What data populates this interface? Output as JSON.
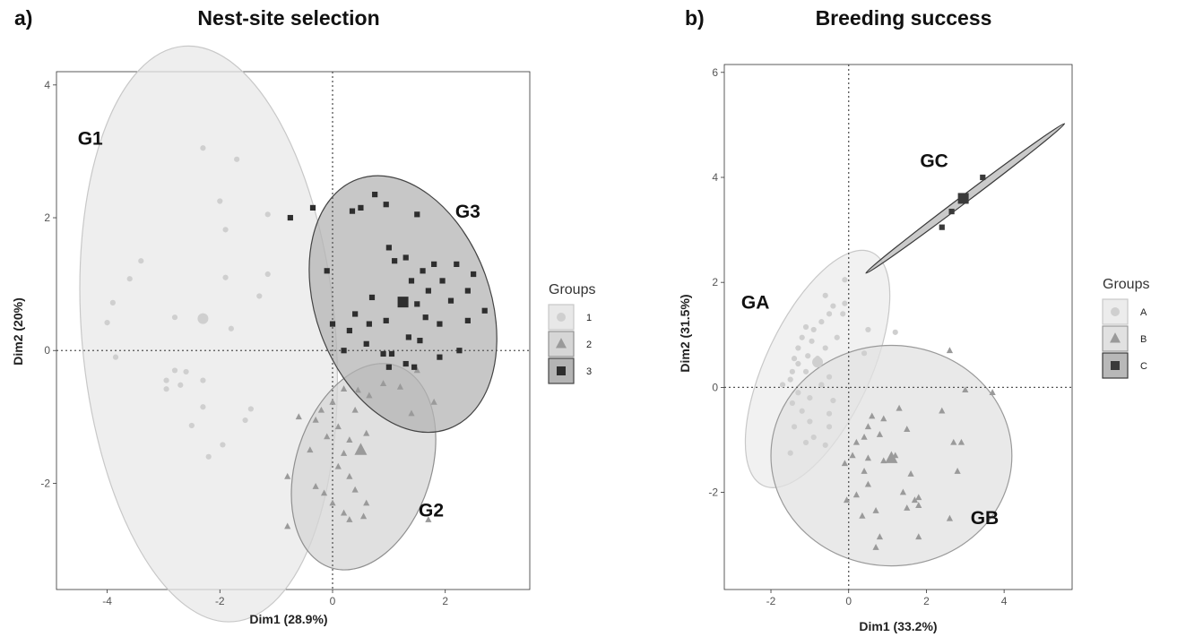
{
  "chart_data": [
    {
      "type": "scatter",
      "panel_letter": "a)",
      "title": "Nest-site selection",
      "xlabel": "Dim1 (28.9%)",
      "ylabel": "Dim2 (20%)",
      "xlim": [
        -4.9,
        3.5
      ],
      "ylim": [
        -3.6,
        4.2
      ],
      "xticks": [
        -4,
        -2,
        0,
        2
      ],
      "yticks": [
        -2,
        0,
        2,
        4
      ],
      "grid": false,
      "reference_lines": {
        "x": 0,
        "y": 0
      },
      "legend": {
        "title": "Groups",
        "position": "right",
        "entries": [
          "1",
          "2",
          "3"
        ]
      },
      "series": [
        {
          "legend_label": "1",
          "plot_label": "G1",
          "marker": "circle",
          "color": "#cfcfcf",
          "ellipse": {
            "cx": -2.2,
            "cy": 0.25,
            "rx": 2.25,
            "ry": 4.35,
            "angle": -5,
            "fill": "#e8e8e8",
            "stroke": "#c8c8c8"
          },
          "centroid": [
            -2.3,
            0.48
          ],
          "points": [
            [
              -2.3,
              3.05
            ],
            [
              -1.7,
              2.88
            ],
            [
              -2.0,
              2.25
            ],
            [
              -1.15,
              2.05
            ],
            [
              -1.9,
              1.82
            ],
            [
              -3.4,
              1.35
            ],
            [
              -3.6,
              1.08
            ],
            [
              -1.9,
              1.1
            ],
            [
              -1.15,
              1.15
            ],
            [
              -3.9,
              0.72
            ],
            [
              -1.3,
              0.82
            ],
            [
              -4.0,
              0.42
            ],
            [
              -2.8,
              0.5
            ],
            [
              -1.8,
              0.33
            ],
            [
              -3.85,
              -0.1
            ],
            [
              -2.8,
              -0.3
            ],
            [
              -2.6,
              -0.32
            ],
            [
              -2.3,
              -0.45
            ],
            [
              -2.95,
              -0.45
            ],
            [
              -2.95,
              -0.58
            ],
            [
              -2.7,
              -0.52
            ],
            [
              -2.3,
              -0.85
            ],
            [
              -1.45,
              -0.88
            ],
            [
              -1.55,
              -1.05
            ],
            [
              -2.5,
              -1.13
            ],
            [
              -1.95,
              -1.42
            ],
            [
              -2.2,
              -1.6
            ]
          ]
        },
        {
          "legend_label": "2",
          "plot_label": "G2",
          "marker": "triangle",
          "color": "#9a9a9a",
          "ellipse": {
            "cx": 0.55,
            "cy": -1.75,
            "rx": 1.2,
            "ry": 1.6,
            "angle": 18,
            "fill": "#d6d6d6",
            "stroke": "#8f8f8f"
          },
          "centroid": [
            0.5,
            -1.5
          ],
          "points": [
            [
              1.5,
              -0.3
            ],
            [
              0.9,
              -0.5
            ],
            [
              1.2,
              -0.55
            ],
            [
              0.2,
              -0.58
            ],
            [
              0.45,
              -0.6
            ],
            [
              0.65,
              -0.68
            ],
            [
              1.8,
              -0.78
            ],
            [
              0.0,
              -0.78
            ],
            [
              -0.2,
              -0.9
            ],
            [
              0.4,
              -0.9
            ],
            [
              1.4,
              -0.95
            ],
            [
              -0.6,
              -1.0
            ],
            [
              -0.3,
              -1.05
            ],
            [
              0.1,
              -1.15
            ],
            [
              0.6,
              -1.25
            ],
            [
              -0.1,
              -1.3
            ],
            [
              0.3,
              -1.35
            ],
            [
              -0.4,
              -1.5
            ],
            [
              0.2,
              -1.55
            ],
            [
              0.1,
              -1.75
            ],
            [
              -0.8,
              -1.9
            ],
            [
              0.3,
              -1.9
            ],
            [
              -0.3,
              -2.05
            ],
            [
              0.4,
              -2.1
            ],
            [
              -0.15,
              -2.15
            ],
            [
              0.0,
              -2.3
            ],
            [
              0.2,
              -2.45
            ],
            [
              0.55,
              -2.5
            ],
            [
              0.3,
              -2.55
            ],
            [
              -0.8,
              -2.65
            ],
            [
              1.7,
              -2.55
            ],
            [
              0.6,
              -2.3
            ]
          ]
        },
        {
          "legend_label": "3",
          "plot_label": "G3",
          "marker": "square",
          "color": "#2e2e2e",
          "ellipse": {
            "cx": 1.25,
            "cy": 0.7,
            "rx": 1.55,
            "ry": 2.0,
            "angle": -20,
            "fill": "#b4b4b4",
            "stroke": "#444444"
          },
          "centroid": [
            1.25,
            0.73
          ],
          "points": [
            [
              -0.75,
              2.0
            ],
            [
              -0.35,
              2.15
            ],
            [
              0.35,
              2.1
            ],
            [
              0.95,
              2.2
            ],
            [
              0.75,
              2.35
            ],
            [
              1.5,
              2.05
            ],
            [
              1.0,
              1.55
            ],
            [
              1.3,
              1.4
            ],
            [
              1.8,
              1.3
            ],
            [
              1.1,
              1.35
            ],
            [
              2.2,
              1.3
            ],
            [
              -0.1,
              1.2
            ],
            [
              1.6,
              1.2
            ],
            [
              2.5,
              1.15
            ],
            [
              1.4,
              1.05
            ],
            [
              1.95,
              1.05
            ],
            [
              2.4,
              0.9
            ],
            [
              1.7,
              0.9
            ],
            [
              2.1,
              0.75
            ],
            [
              0.7,
              0.8
            ],
            [
              1.5,
              0.7
            ],
            [
              2.7,
              0.6
            ],
            [
              0.4,
              0.55
            ],
            [
              1.65,
              0.5
            ],
            [
              2.4,
              0.45
            ],
            [
              0.0,
              0.4
            ],
            [
              0.65,
              0.4
            ],
            [
              0.95,
              0.45
            ],
            [
              1.9,
              0.4
            ],
            [
              0.3,
              0.3
            ],
            [
              1.35,
              0.2
            ],
            [
              1.55,
              0.15
            ],
            [
              0.6,
              0.1
            ],
            [
              2.25,
              0.0
            ],
            [
              0.2,
              0.0
            ],
            [
              0.9,
              -0.05
            ],
            [
              1.9,
              -0.1
            ],
            [
              1.0,
              -0.25
            ],
            [
              1.3,
              -0.2
            ],
            [
              1.45,
              -0.25
            ],
            [
              0.5,
              2.15
            ],
            [
              1.05,
              -0.05
            ]
          ]
        }
      ]
    },
    {
      "type": "scatter",
      "panel_letter": "b)",
      "title": "Breeding success",
      "xlabel": "Dim1 (33.2%)",
      "ylabel": "Dim2 (31.5%)",
      "xlim": [
        -3.2,
        5.75
      ],
      "ylim": [
        -3.85,
        6.15
      ],
      "xticks": [
        -2,
        0,
        2,
        4
      ],
      "yticks": [
        -2,
        0,
        2,
        4,
        6
      ],
      "grid": false,
      "reference_lines": {
        "x": 0,
        "y": 0
      },
      "legend": {
        "title": "Groups",
        "position": "right",
        "entries": [
          "A",
          "B",
          "C"
        ]
      },
      "series": [
        {
          "legend_label": "A",
          "plot_label": "GA",
          "marker": "circle",
          "color": "#cfcfcf",
          "ellipse": {
            "cx": -0.8,
            "cy": 0.35,
            "rx": 1.35,
            "ry": 2.45,
            "angle": 25,
            "fill": "#ececec",
            "stroke": "#c8c8c8"
          },
          "centroid": [
            -0.8,
            0.48
          ],
          "points": [
            [
              -0.1,
              2.05
            ],
            [
              -0.6,
              1.75
            ],
            [
              -0.1,
              1.6
            ],
            [
              -0.4,
              1.55
            ],
            [
              -0.15,
              1.4
            ],
            [
              -0.5,
              1.4
            ],
            [
              -0.9,
              1.1
            ],
            [
              -1.1,
              1.15
            ],
            [
              -0.7,
              1.25
            ],
            [
              -1.2,
              0.95
            ],
            [
              -0.95,
              0.88
            ],
            [
              -1.3,
              0.75
            ],
            [
              -0.6,
              0.75
            ],
            [
              -1.05,
              0.6
            ],
            [
              -1.4,
              0.55
            ],
            [
              -0.8,
              0.55
            ],
            [
              -1.3,
              0.45
            ],
            [
              -1.45,
              0.3
            ],
            [
              -1.1,
              0.3
            ],
            [
              -1.5,
              0.15
            ],
            [
              -0.5,
              0.2
            ],
            [
              -1.7,
              0.05
            ],
            [
              -0.7,
              0.05
            ],
            [
              -1.3,
              -0.1
            ],
            [
              -1.0,
              -0.2
            ],
            [
              -1.45,
              -0.3
            ],
            [
              -0.4,
              -0.25
            ],
            [
              -1.2,
              -0.45
            ],
            [
              -0.5,
              -0.5
            ],
            [
              -1.0,
              -0.65
            ],
            [
              -1.4,
              -0.75
            ],
            [
              -0.5,
              -0.75
            ],
            [
              -0.9,
              -0.95
            ],
            [
              -1.1,
              -1.05
            ],
            [
              -1.5,
              -1.25
            ],
            [
              -0.6,
              -1.1
            ],
            [
              0.5,
              1.1
            ],
            [
              1.2,
              1.05
            ],
            [
              0.4,
              0.65
            ],
            [
              -0.3,
              0.95
            ]
          ]
        },
        {
          "legend_label": "B",
          "plot_label": "GB",
          "marker": "triangle",
          "color": "#9a9a9a",
          "ellipse": {
            "cx": 1.1,
            "cy": -1.3,
            "rx": 3.1,
            "ry": 2.1,
            "angle": 0,
            "fill": "#e1e1e1",
            "stroke": "#9a9a9a"
          },
          "centroid": [
            1.1,
            -1.35
          ],
          "points": [
            [
              2.6,
              0.7
            ],
            [
              3.0,
              -0.05
            ],
            [
              3.7,
              -0.1
            ],
            [
              1.3,
              -0.4
            ],
            [
              2.4,
              -0.45
            ],
            [
              0.6,
              -0.55
            ],
            [
              0.9,
              -0.6
            ],
            [
              0.5,
              -0.75
            ],
            [
              1.5,
              -0.8
            ],
            [
              0.8,
              -0.9
            ],
            [
              0.4,
              -0.95
            ],
            [
              0.2,
              -1.05
            ],
            [
              2.7,
              -1.05
            ],
            [
              2.9,
              -1.05
            ],
            [
              1.2,
              -1.3
            ],
            [
              0.1,
              -1.3
            ],
            [
              0.5,
              -1.35
            ],
            [
              0.9,
              -1.4
            ],
            [
              -0.1,
              -1.45
            ],
            [
              2.8,
              -1.6
            ],
            [
              0.4,
              -1.6
            ],
            [
              1.6,
              -1.65
            ],
            [
              0.5,
              -1.85
            ],
            [
              1.4,
              -2.0
            ],
            [
              0.2,
              -2.05
            ],
            [
              1.8,
              -2.1
            ],
            [
              -0.05,
              -2.15
            ],
            [
              1.8,
              -2.25
            ],
            [
              1.5,
              -2.3
            ],
            [
              0.7,
              -2.35
            ],
            [
              0.8,
              -2.85
            ],
            [
              1.8,
              -2.85
            ],
            [
              2.6,
              -2.5
            ],
            [
              0.7,
              -3.05
            ],
            [
              1.7,
              -2.15
            ],
            [
              0.35,
              -2.45
            ]
          ]
        },
        {
          "legend_label": "C",
          "plot_label": "GC",
          "marker": "square",
          "color": "#3a3a3a",
          "ellipse": {
            "cx": 3.0,
            "cy": 3.6,
            "rx": 3.2,
            "ry": 0.07,
            "angle": -37,
            "fill": "#b8b8b8",
            "stroke": "#3a3a3a"
          },
          "centroid": [
            2.95,
            3.6
          ],
          "points": [
            [
              2.4,
              3.05
            ],
            [
              2.65,
              3.35
            ],
            [
              3.45,
              4.0
            ]
          ]
        }
      ]
    }
  ]
}
